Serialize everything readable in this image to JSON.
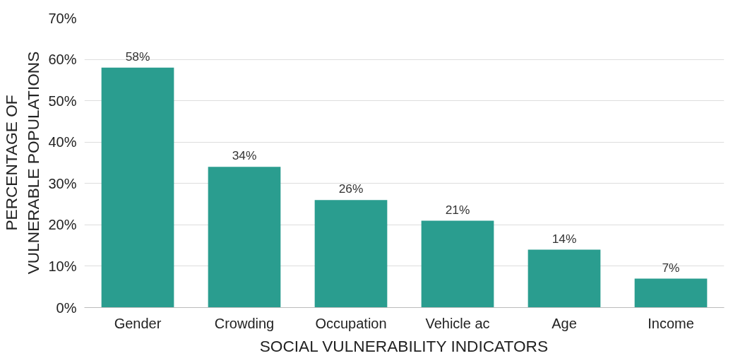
{
  "chart_data": {
    "type": "bar",
    "xlabel": "SOCIAL VULNERABILITY INDICATORS",
    "ylabel": "PERCENTAGE OF\nVULNERABLE POPULATIONS",
    "categories": [
      "Gender",
      "Crowding",
      "Occupation",
      "Vehicle ac",
      "Age",
      "Income"
    ],
    "values": [
      58,
      34,
      26,
      21,
      14,
      7
    ],
    "value_labels": [
      "58%",
      "34%",
      "26%",
      "21%",
      "14%",
      "7%"
    ],
    "color": "#2a9d8f",
    "ylim": [
      0,
      70
    ],
    "yticks": [
      {
        "value": 0,
        "label": "0%"
      },
      {
        "value": 10,
        "label": "10%"
      },
      {
        "value": 20,
        "label": "20%"
      },
      {
        "value": 30,
        "label": "30%"
      },
      {
        "value": 40,
        "label": "40%"
      },
      {
        "value": 50,
        "label": "50%"
      },
      {
        "value": 60,
        "label": "60%"
      },
      {
        "value": 70,
        "label": "70%"
      }
    ],
    "grid": "y"
  }
}
